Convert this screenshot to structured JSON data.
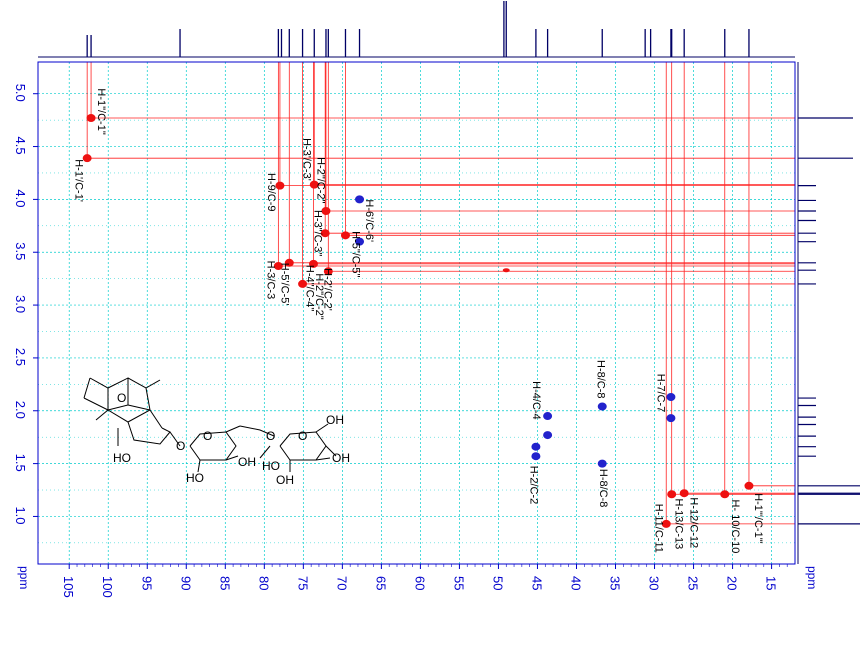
{
  "chart_data": {
    "type": "scatter",
    "subtype": "2D NMR HMBC spectrum",
    "x_unit": "ppm",
    "y_unit": "ppm",
    "xlim": [
      109,
      12
    ],
    "ylim": [
      5.3,
      0.55
    ],
    "x_ticks": [
      "105",
      "100",
      "95",
      "90",
      "85",
      "80",
      "75",
      "70",
      "65",
      "60",
      "55",
      "50",
      "45",
      "40",
      "35",
      "30",
      "25",
      "20",
      "15"
    ],
    "y_ticks": [
      "5.0",
      "4.5",
      "4.0",
      "3.5",
      "3.0",
      "2.5",
      "2.0",
      "1.5",
      "1.0"
    ],
    "grid": true,
    "cross_peaks": [
      {
        "label": "H-1\"/C-1\"",
        "x": 102.2,
        "y": 4.77,
        "color": "red"
      },
      {
        "label": "H-1'/C-1'",
        "x": 102.7,
        "y": 4.39,
        "color": "red"
      },
      {
        "label": "H-9/C-9",
        "x": 78.0,
        "y": 4.13,
        "color": "red"
      },
      {
        "label": "H-3'/C-3'",
        "x": 73.6,
        "y": 4.14,
        "color": "red"
      },
      {
        "label": "H-2\"/C-2\"",
        "x": 72.1,
        "y": 3.89,
        "color": "red"
      },
      {
        "label": "H-3\"/C-3\"",
        "x": 72.2,
        "y": 3.68,
        "color": "red"
      },
      {
        "label": "H-5\"/C-5\"",
        "x": 69.6,
        "y": 3.66,
        "color": "red"
      },
      {
        "label": "H-6'/C-6'",
        "x": 67.8,
        "y": 4.0,
        "color": "blue"
      },
      {
        "label": "H-6'/C-6'",
        "x": 67.8,
        "y": 3.6,
        "color": "blue"
      },
      {
        "label": "H-3/C-3",
        "x": 78.2,
        "y": 3.37,
        "color": "red"
      },
      {
        "label": "H-5'/C-5'",
        "x": 76.8,
        "y": 3.4,
        "color": "red"
      },
      {
        "label": "H-4\"/C-4\"",
        "x": 73.7,
        "y": 3.39,
        "color": "red"
      },
      {
        "label": "H-2'/C-2'",
        "x": 71.8,
        "y": 3.32,
        "color": "red"
      },
      {
        "label": "H-2'/C-2'",
        "x": 75.1,
        "y": 3.2,
        "color": "red"
      },
      {
        "label": "",
        "x": 49.0,
        "y": 3.33,
        "color": "red"
      },
      {
        "label": "H-4/C-4",
        "x": 43.7,
        "y": 1.95,
        "color": "blue"
      },
      {
        "label": "H-4/C-4",
        "x": 43.7,
        "y": 1.77,
        "color": "blue"
      },
      {
        "label": "H-2/C-2",
        "x": 45.2,
        "y": 1.66,
        "color": "blue"
      },
      {
        "label": "H-2/C-2",
        "x": 45.2,
        "y": 1.57,
        "color": "blue"
      },
      {
        "label": "H-8/C-8",
        "x": 36.7,
        "y": 2.04,
        "color": "blue"
      },
      {
        "label": "H-8/C-8",
        "x": 36.7,
        "y": 1.5,
        "color": "blue"
      },
      {
        "label": "H-7/C-7",
        "x": 27.9,
        "y": 2.13,
        "color": "blue"
      },
      {
        "label": "H-7/C-7",
        "x": 27.9,
        "y": 1.93,
        "color": "blue"
      },
      {
        "label": "H-1\"'/C-1\"'",
        "x": 17.9,
        "y": 1.29,
        "color": "red"
      },
      {
        "label": "H-10/C-10",
        "x": 21.0,
        "y": 1.21,
        "color": "red"
      },
      {
        "label": "H-12/C-12",
        "x": 26.2,
        "y": 1.22,
        "color": "red"
      },
      {
        "label": "H-13/C-13",
        "x": 27.8,
        "y": 1.21,
        "color": "red"
      },
      {
        "label": "H-11/C-11",
        "x": 28.5,
        "y": 0.93,
        "color": "red"
      }
    ],
    "peak_labels": [
      {
        "text": "H-1\"/C-1\"",
        "x": 101.3,
        "y": 5.05
      },
      {
        "text": "H-1'/C-1'",
        "x": 104.2,
        "y": 4.38
      },
      {
        "text": "H-9/C-9",
        "x": 79.5,
        "y": 4.25
      },
      {
        "text": "H-3'/C-3'",
        "x": 75.0,
        "y": 4.58
      },
      {
        "text": "H-2\"/C-2\"",
        "x": 73.2,
        "y": 4.4
      },
      {
        "text": "H-3\"/C-3\"",
        "x": 73.6,
        "y": 3.9
      },
      {
        "text": "H-6'/C-6'",
        "x": 67.0,
        "y": 4.0
      },
      {
        "text": "H-5\"/C-5\"",
        "x": 68.7,
        "y": 3.7
      },
      {
        "text": "H-3/C-3",
        "x": 79.6,
        "y": 3.42
      },
      {
        "text": "H-5'/C-5'",
        "x": 77.8,
        "y": 3.4
      },
      {
        "text": "H-4\"/C-4\"",
        "x": 74.6,
        "y": 3.38
      },
      {
        "text": "H-2\"/C-2\"",
        "x": 73.4,
        "y": 3.3
      },
      {
        "text": "H-2'/C-2'",
        "x": 72.3,
        "y": 3.35
      },
      {
        "text": "H-4/C-4",
        "x": 45.6,
        "y": 2.28
      },
      {
        "text": "H-2/C-2",
        "x": 45.9,
        "y": 1.48
      },
      {
        "text": "H-8/C-8",
        "x": 37.3,
        "y": 2.48
      },
      {
        "text": "H-8/C-8",
        "x": 37.0,
        "y": 1.45
      },
      {
        "text": "H-7/C-7",
        "x": 29.6,
        "y": 2.35
      },
      {
        "text": "H-1\"'/C-1\"'",
        "x": 17.1,
        "y": 1.22
      },
      {
        "text": "H- 10/C-10",
        "x": 20.1,
        "y": 1.16
      },
      {
        "text": "H-12/C-12",
        "x": 25.4,
        "y": 1.18
      },
      {
        "text": "H-13/C-13",
        "x": 27.3,
        "y": 1.17
      },
      {
        "text": "H-11/C-11",
        "x": 29.9,
        "y": 1.12
      }
    ],
    "projection_13c_peaks": [
      102.7,
      102.2,
      90.8,
      78.2,
      77.8,
      76.8,
      75.1,
      73.6,
      72.1,
      71.8,
      69.6,
      67.8,
      49.3,
      49.0,
      45.2,
      43.7,
      36.7,
      31.2,
      30.5,
      27.9,
      27.8,
      26.2,
      21.0,
      17.9
    ],
    "projection_1h_peaks": [
      4.77,
      4.39,
      4.13,
      3.99,
      3.89,
      3.8,
      3.68,
      3.6,
      3.4,
      3.33,
      3.2,
      2.12,
      2.05,
      1.94,
      1.87,
      1.76,
      1.66,
      1.57,
      1.29,
      1.22,
      1.21,
      0.93
    ],
    "structure_labels": {
      "oh1": "HO",
      "oh2": "OH",
      "oh3": "OH",
      "oh4": "OH",
      "oh5": "OH",
      "ho3": "HO",
      "ho4": "HO",
      "ring_o1": "O",
      "ring_o2": "O",
      "ring_o3": "O",
      "ring_o4": "O",
      "ring_o5": "O"
    }
  }
}
